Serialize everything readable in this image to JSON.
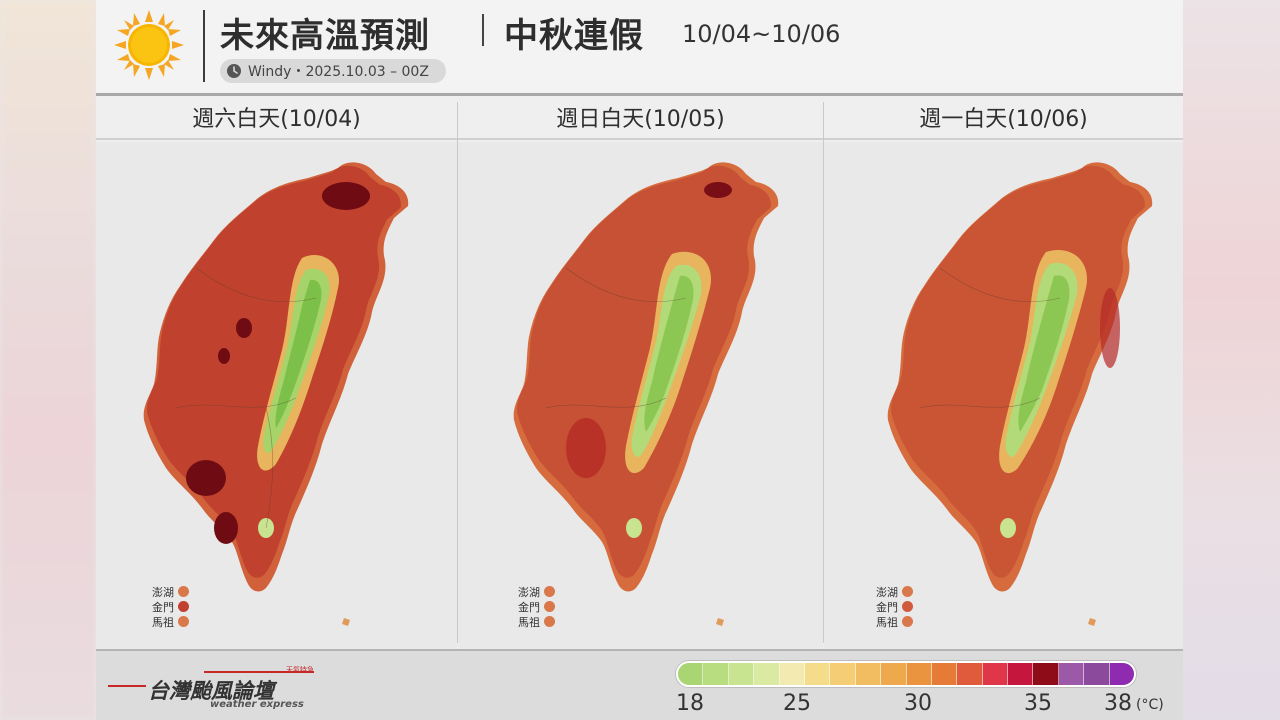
{
  "header": {
    "title": "未來高溫預測",
    "subtitle": "中秋連假",
    "dates": "10/04~10/06",
    "source": "Windy・2025.10.03 – 00Z",
    "icons": {
      "sun": "sun-icon",
      "clock": "clock-icon"
    }
  },
  "panels": [
    {
      "title": "週六白天(10/04)",
      "outlying": [
        {
          "name": "澎湖",
          "color": "#d9784a"
        },
        {
          "name": "金門",
          "color": "#c2402f"
        },
        {
          "name": "馬祖",
          "color": "#d9784a"
        }
      ]
    },
    {
      "title": "週日白天(10/05)",
      "outlying": [
        {
          "name": "澎湖",
          "color": "#d9784a"
        },
        {
          "name": "金門",
          "color": "#d9784a"
        },
        {
          "name": "馬祖",
          "color": "#d9784a"
        }
      ]
    },
    {
      "title": "週一白天(10/06)",
      "outlying": [
        {
          "name": "澎湖",
          "color": "#d9784a"
        },
        {
          "name": "金門",
          "color": "#d05a3c"
        },
        {
          "name": "馬祖",
          "color": "#d9784a"
        }
      ]
    }
  ],
  "legend": {
    "ticks": [
      "18",
      "25",
      "30",
      "35",
      "38"
    ],
    "unit": "(°C)",
    "colors": [
      "#a9d672",
      "#b8dd80",
      "#c9e490",
      "#dbeaa2",
      "#f3eab2",
      "#f5dc8a",
      "#f4cd74",
      "#f2bd60",
      "#eea94c",
      "#ea9440",
      "#e57b36",
      "#e05a3c",
      "#e0364a",
      "#c5163e",
      "#8e0c18",
      "#9b59a8",
      "#8b4a9c",
      "#8e2bb0"
    ]
  },
  "footer": {
    "logo": "台灣颱風論壇",
    "logo_sub": "weather express",
    "logo_tag": "天氣特急"
  }
}
